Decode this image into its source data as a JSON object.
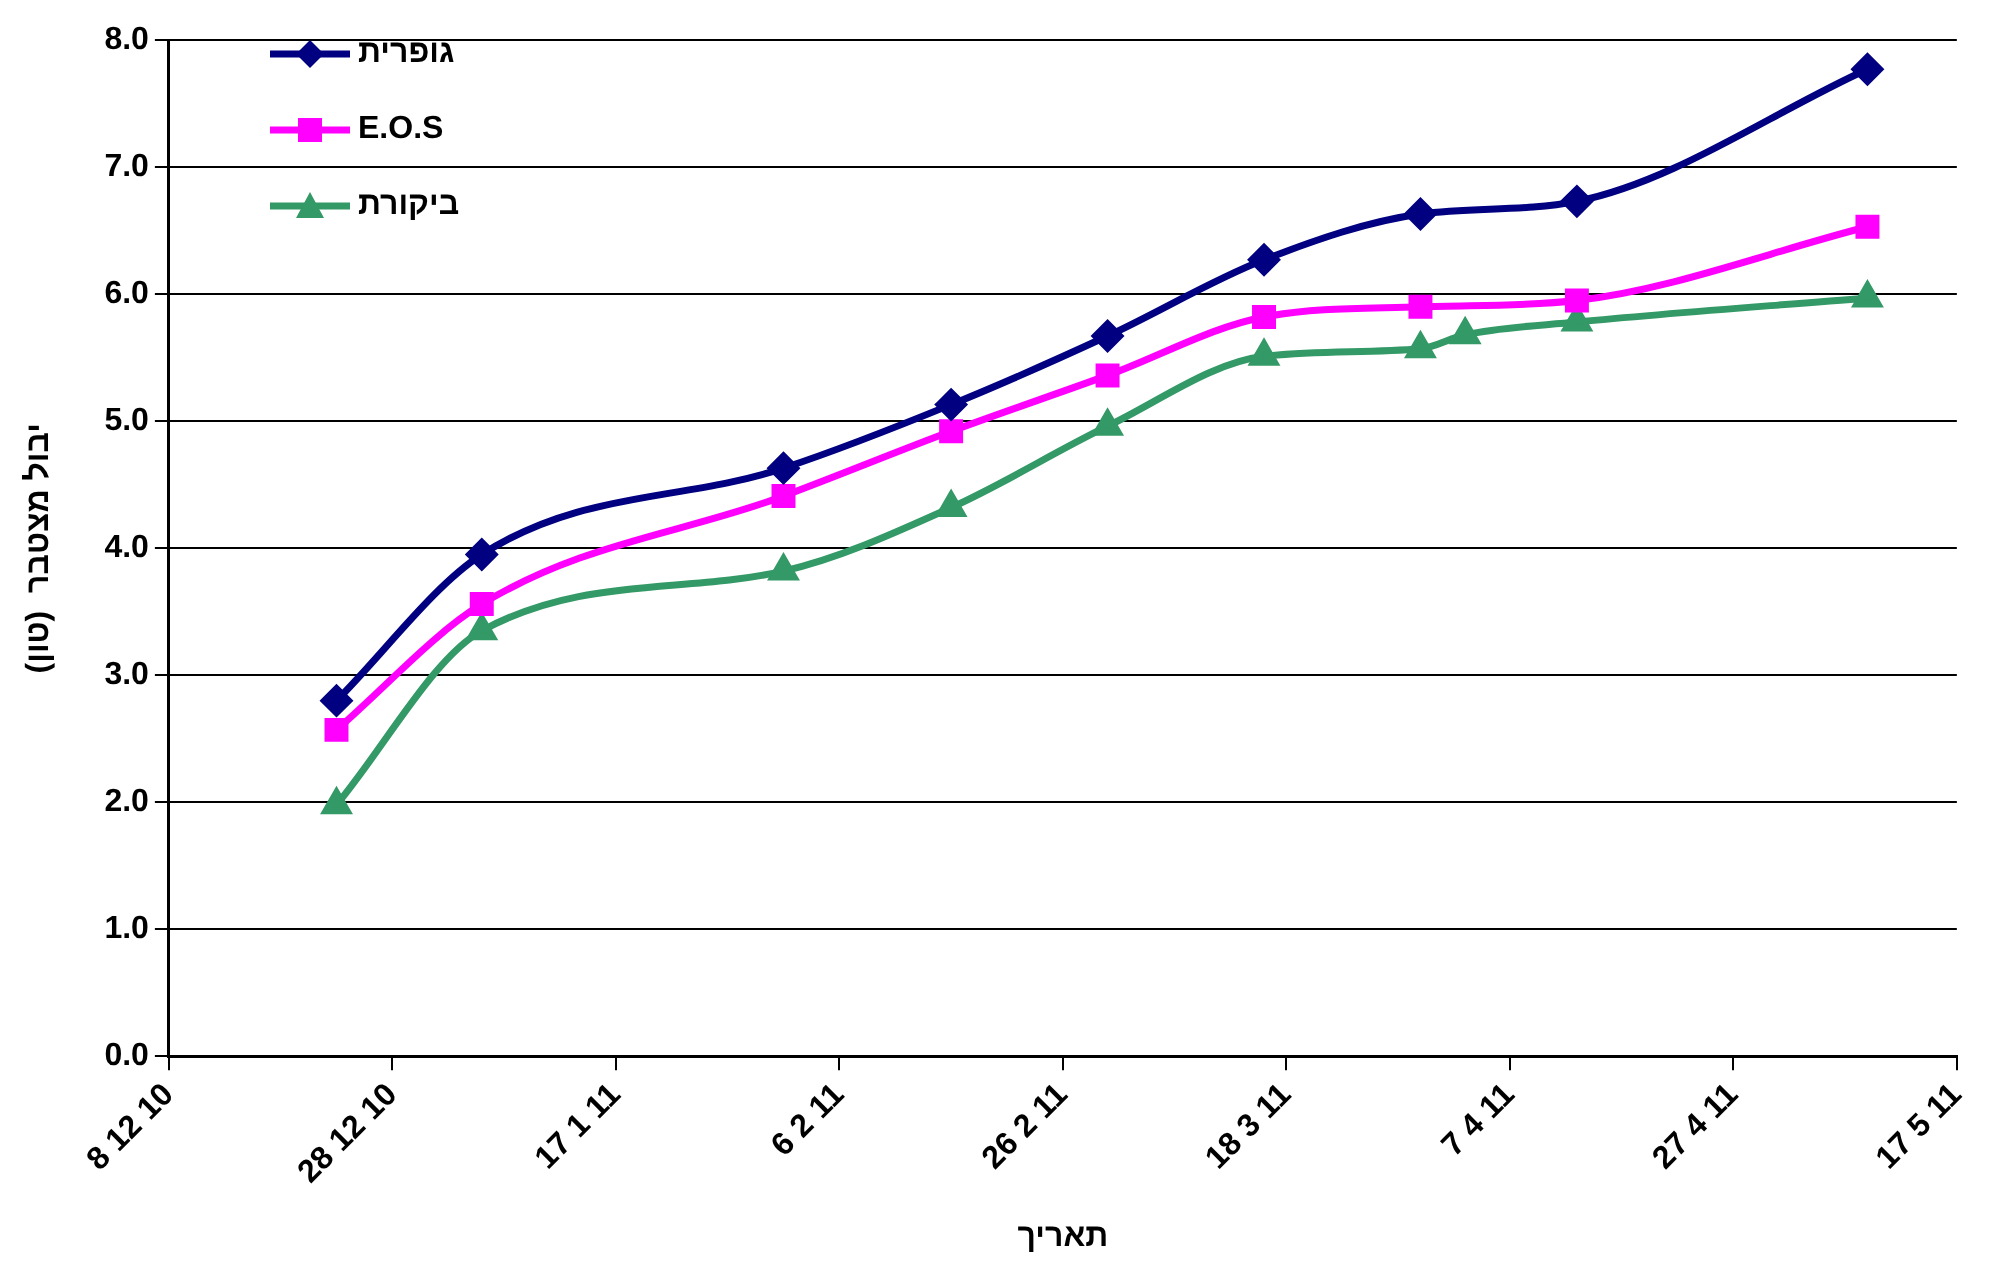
{
  "chart_data": {
    "type": "line",
    "xlabel": "תאריך",
    "ylabel": "יבול מצטבר  (טון)",
    "xlim": [
      "2010-12-08",
      "2011-05-17"
    ],
    "xticks": [
      {
        "value": "2010-12-08",
        "label": "8 12 10"
      },
      {
        "value": "2010-12-28",
        "label": "28 12 10"
      },
      {
        "value": "2011-01-17",
        "label": "17 1 11"
      },
      {
        "value": "2011-02-06",
        "label": "6 2 11"
      },
      {
        "value": "2011-02-26",
        "label": "26 2 11"
      },
      {
        "value": "2011-03-18",
        "label": "18 3 11"
      },
      {
        "value": "2011-04-07",
        "label": "7 4 11"
      },
      {
        "value": "2011-04-27",
        "label": "27 4 11"
      },
      {
        "value": "2011-05-17",
        "label": "17 5 11"
      }
    ],
    "ylim": [
      0,
      8
    ],
    "yticks": [
      {
        "value": 0,
        "label": "0.0"
      },
      {
        "value": 1,
        "label": "1.0"
      },
      {
        "value": 2,
        "label": "2.0"
      },
      {
        "value": 3,
        "label": "3.0"
      },
      {
        "value": 4,
        "label": "4.0"
      },
      {
        "value": 5,
        "label": "5.0"
      },
      {
        "value": 6,
        "label": "6.0"
      },
      {
        "value": 7,
        "label": "7.0"
      },
      {
        "value": 8,
        "label": "8.0"
      }
    ],
    "grid": "y",
    "legend": "top left",
    "line_style": "solid",
    "series": [
      {
        "name": "גופרית",
        "color": "#000080",
        "marker": "diamond",
        "x": [
          "2010-12-23",
          "2011-01-05",
          "2011-02-01",
          "2011-02-16",
          "2011-03-02",
          "2011-03-16",
          "2011-03-30",
          "2011-04-13",
          "2011-05-09"
        ],
        "values": [
          2.8,
          3.95,
          4.63,
          5.13,
          5.67,
          6.27,
          6.63,
          6.73,
          7.77
        ]
      },
      {
        "name": "E.O.S",
        "color": "#ff00ff",
        "marker": "square",
        "x": [
          "2010-12-23",
          "2011-01-05",
          "2011-02-01",
          "2011-02-16",
          "2011-03-02",
          "2011-03-16",
          "2011-03-30",
          "2011-04-13",
          "2011-05-09"
        ],
        "values": [
          2.57,
          3.56,
          4.41,
          4.92,
          5.36,
          5.82,
          5.9,
          5.95,
          6.53
        ]
      },
      {
        "name": "ביקורת",
        "color": "#339966",
        "marker": "triangle",
        "x": [
          "2010-12-23",
          "2011-01-05",
          "2011-02-01",
          "2011-02-16",
          "2011-03-02",
          "2011-03-16",
          "2011-03-30",
          "2011-04-03",
          "2011-04-13",
          "2011-05-09"
        ],
        "values": [
          1.98,
          3.35,
          3.82,
          4.32,
          4.96,
          5.51,
          5.57,
          5.68,
          5.78,
          5.97
        ]
      }
    ]
  }
}
